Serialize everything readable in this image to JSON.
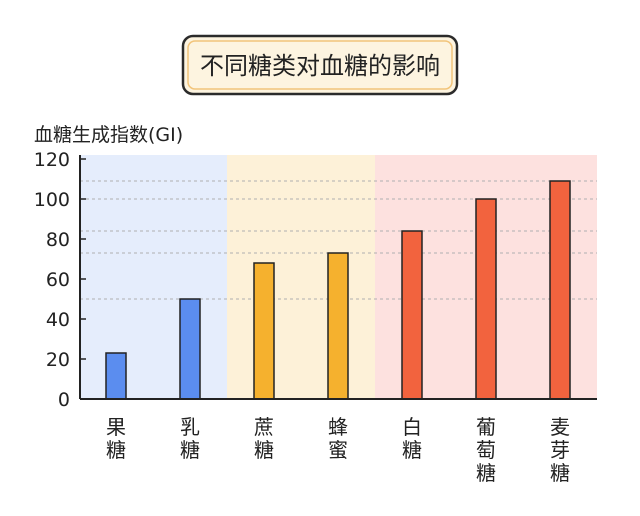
{
  "chart_data": {
    "type": "bar",
    "title": "不同糖类对血糖的影响",
    "ylabel": "血糖生成指数(GI)",
    "xlabel": "",
    "ylim": [
      0,
      120
    ],
    "yticks": [
      0,
      20,
      40,
      60,
      80,
      100,
      120
    ],
    "grid": false,
    "categories": [
      "果\n糖",
      "乳\n糖",
      "蔗\n糖",
      "蜂\n蜜",
      "白\n糖",
      "葡\n萄\n糖",
      "麦\n芽\n糖"
    ],
    "values": [
      23,
      50,
      68,
      73,
      84,
      100,
      109
    ],
    "bar_colors": [
      "#5b8def",
      "#5b8def",
      "#f5b12e",
      "#f5b12e",
      "#f2633e",
      "#f2633e",
      "#f2633e"
    ],
    "group_backgrounds": [
      "#e5edfc",
      "#fdf1d8",
      "#fde1df"
    ],
    "reference_lines": [
      50,
      73,
      84,
      100,
      109
    ]
  }
}
